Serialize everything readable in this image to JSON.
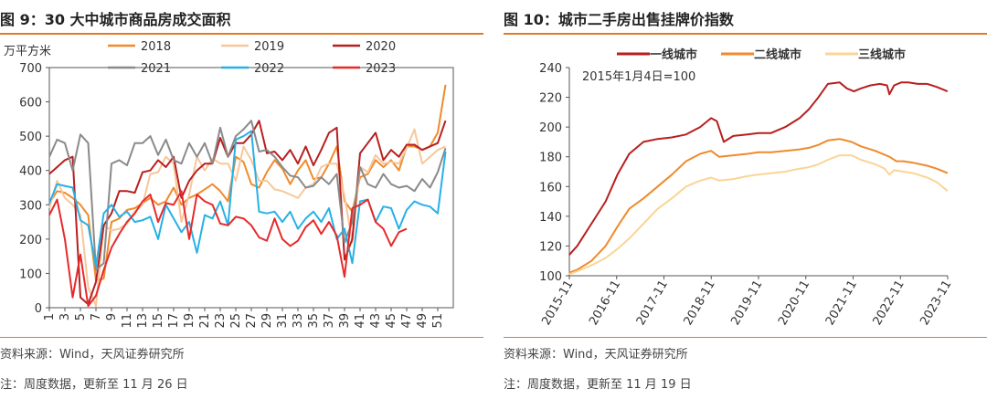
{
  "panels": {
    "left": {
      "title": "图 9：30 大中城市商品房成交面积",
      "source": "资料来源：Wind，天风证券研究所",
      "note": "注：周度数据，更新至 11 月 26 日"
    },
    "right": {
      "title": "图 10：城市二手房出售挂牌价指数",
      "source": "资料来源：Wind，天风证券研究所",
      "note": "注：周度数据，更新至 11 月 19 日"
    }
  },
  "colors": {
    "accent_rule": "#e37b24",
    "s2018": "#f08a2c",
    "s2019": "#f7c79a",
    "s2020": "#b81f1f",
    "s2021": "#8a8a8a",
    "s2022": "#26b1e6",
    "s2023": "#e62a2a",
    "tier1": "#b81f1f",
    "tier2": "#f08a2c",
    "tier3": "#fad594"
  },
  "chart_data": [
    {
      "type": "line",
      "ylabel": "万平方米",
      "ylim": [
        0,
        700
      ],
      "yticks": [
        0,
        100,
        200,
        300,
        400,
        500,
        600,
        700
      ],
      "xlim": [
        1,
        53
      ],
      "xticks": [
        "1",
        "3",
        "5",
        "7",
        "9",
        "11",
        "13",
        "15",
        "17",
        "19",
        "21",
        "23",
        "25",
        "27",
        "29",
        "31",
        "33",
        "35",
        "37",
        "39",
        "41",
        "43",
        "45",
        "47",
        "49",
        "51"
      ],
      "legend_position": "top",
      "series": [
        {
          "name": "2018",
          "color": "#f08a2c",
          "values": [
            305,
            340,
            335,
            320,
            300,
            270,
            80,
            85,
            250,
            260,
            285,
            290,
            305,
            320,
            300,
            310,
            350,
            300,
            320,
            330,
            345,
            360,
            340,
            310,
            440,
            425,
            360,
            350,
            395,
            430,
            405,
            360,
            400,
            430,
            375,
            380,
            420,
            470,
            310,
            280,
            380,
            390,
            430,
            410,
            430,
            400,
            470,
            470,
            460,
            470,
            510,
            650
          ]
        },
        {
          "name": "2019",
          "color": "#f7c79a",
          "values": [
            290,
            370,
            320,
            300,
            270,
            60,
            5,
            240,
            225,
            230,
            245,
            280,
            300,
            390,
            395,
            440,
            420,
            250,
            330,
            440,
            400,
            435,
            420,
            420,
            370,
            470,
            430,
            370,
            370,
            345,
            340,
            330,
            320,
            350,
            360,
            410,
            420,
            420,
            325,
            190,
            410,
            395,
            445,
            420,
            425,
            420,
            465,
            520,
            420,
            440,
            460,
            470
          ]
        },
        {
          "name": "2020",
          "color": "#b81f1f",
          "values": [
            390,
            410,
            430,
            440,
            30,
            10,
            75,
            240,
            275,
            340,
            340,
            335,
            395,
            400,
            430,
            410,
            440,
            320,
            370,
            400,
            420,
            420,
            495,
            440,
            480,
            480,
            505,
            545,
            450,
            455,
            430,
            460,
            420,
            470,
            415,
            460,
            510,
            525,
            140,
            200,
            450,
            480,
            510,
            430,
            460,
            440,
            475,
            475,
            460,
            470,
            480,
            545
          ]
        },
        {
          "name": "2021",
          "color": "#8a8a8a",
          "values": [
            440,
            490,
            480,
            400,
            505,
            480,
            110,
            130,
            420,
            430,
            415,
            480,
            480,
            500,
            445,
            490,
            430,
            420,
            480,
            440,
            480,
            420,
            525,
            440,
            500,
            520,
            545,
            455,
            460,
            440,
            410,
            385,
            380,
            350,
            355,
            380,
            360,
            390,
            190,
            250,
            410,
            360,
            350,
            390,
            360,
            350,
            355,
            340,
            375,
            350,
            395,
            465
          ]
        },
        {
          "name": "2022",
          "color": "#26b1e6",
          "values": [
            305,
            360,
            355,
            350,
            255,
            240,
            120,
            275,
            300,
            265,
            280,
            250,
            255,
            265,
            200,
            300,
            260,
            220,
            250,
            160,
            270,
            260,
            310,
            240,
            490,
            500,
            515,
            280,
            275,
            280,
            250,
            280,
            230,
            260,
            280,
            250,
            290,
            200,
            230,
            130,
            310,
            315,
            250,
            295,
            290,
            230,
            285,
            310,
            300,
            295,
            275,
            455
          ]
        },
        {
          "name": "2023",
          "color": "#e62a2a",
          "values": [
            270,
            315,
            200,
            30,
            155,
            5,
            35,
            110,
            175,
            215,
            250,
            275,
            310,
            330,
            250,
            305,
            300,
            340,
            200,
            330,
            310,
            300,
            245,
            240,
            265,
            260,
            240,
            205,
            195,
            260,
            200,
            180,
            195,
            235,
            255,
            215,
            250,
            210,
            90,
            290,
            300,
            315,
            250,
            230,
            180,
            220,
            230,
            null,
            null,
            null,
            null,
            null
          ]
        }
      ]
    },
    {
      "type": "line",
      "title": "",
      "annotation": "2015年1月4日=100",
      "ylim": [
        100,
        240
      ],
      "yticks": [
        100,
        120,
        140,
        160,
        180,
        200,
        220,
        240
      ],
      "x_range": [
        "2015-11",
        "2023-11"
      ],
      "xticks": [
        "2015-11",
        "2016-11",
        "2017-11",
        "2018-11",
        "2019-11",
        "2020-11",
        "2021-11",
        "2022-11",
        "2023-11"
      ],
      "legend_position": "top",
      "series": [
        {
          "name": "一线城市",
          "color": "#b81f1f",
          "x": [
            2015.83,
            2016.0,
            2016.3,
            2016.6,
            2016.85,
            2017.1,
            2017.4,
            2017.7,
            2018.0,
            2018.3,
            2018.6,
            2018.83,
            2018.95,
            2019.1,
            2019.3,
            2019.6,
            2019.83,
            2020.1,
            2020.4,
            2020.7,
            2020.9,
            2021.1,
            2021.3,
            2021.55,
            2021.7,
            2021.85,
            2022.0,
            2022.2,
            2022.4,
            2022.55,
            2022.6,
            2022.7,
            2022.85,
            2023.0,
            2023.2,
            2023.4,
            2023.6,
            2023.83
          ],
          "values": [
            114,
            120,
            135,
            150,
            168,
            182,
            190,
            192,
            193,
            195,
            200,
            206,
            204,
            190,
            194,
            195,
            196,
            196,
            200,
            206,
            212,
            220,
            229,
            230,
            226,
            224,
            226,
            228,
            229,
            228,
            222,
            228,
            230,
            230,
            229,
            229,
            227,
            224
          ]
        },
        {
          "name": "二线城市",
          "color": "#f08a2c",
          "x": [
            2015.83,
            2016.0,
            2016.3,
            2016.6,
            2016.85,
            2017.1,
            2017.4,
            2017.7,
            2018.0,
            2018.3,
            2018.6,
            2018.83,
            2019.0,
            2019.3,
            2019.6,
            2019.83,
            2020.1,
            2020.4,
            2020.7,
            2020.9,
            2021.1,
            2021.3,
            2021.55,
            2021.8,
            2022.0,
            2022.3,
            2022.6,
            2022.75,
            2022.9,
            2023.1,
            2023.4,
            2023.6,
            2023.83
          ],
          "values": [
            102,
            104,
            110,
            120,
            133,
            145,
            152,
            160,
            168,
            177,
            182,
            184,
            180,
            181,
            182,
            183,
            183,
            184,
            185,
            186,
            188,
            191,
            192,
            190,
            187,
            184,
            180,
            177,
            177,
            176,
            174,
            172,
            169
          ]
        },
        {
          "name": "三线城市",
          "color": "#fad594",
          "x": [
            2015.83,
            2016.0,
            2016.3,
            2016.6,
            2016.85,
            2017.1,
            2017.4,
            2017.7,
            2018.0,
            2018.3,
            2018.6,
            2018.83,
            2019.0,
            2019.3,
            2019.6,
            2019.83,
            2020.1,
            2020.4,
            2020.7,
            2020.9,
            2021.1,
            2021.3,
            2021.55,
            2021.8,
            2022.0,
            2022.3,
            2022.5,
            2022.6,
            2022.7,
            2022.9,
            2023.1,
            2023.4,
            2023.6,
            2023.83
          ],
          "values": [
            101,
            103,
            107,
            112,
            118,
            125,
            135,
            145,
            152,
            160,
            164,
            166,
            164,
            165,
            167,
            168,
            169,
            170,
            172,
            173,
            175,
            178,
            181,
            181,
            178,
            175,
            172,
            168,
            171,
            170,
            169,
            166,
            163,
            157
          ]
        }
      ]
    }
  ]
}
